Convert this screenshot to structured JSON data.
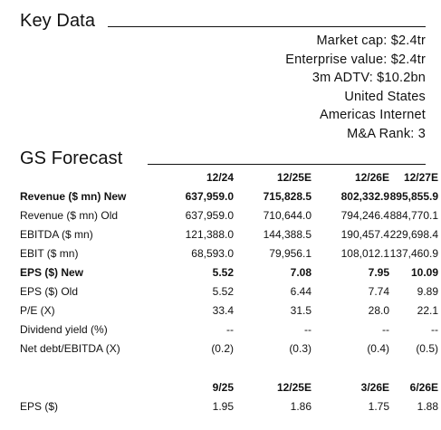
{
  "key_data": {
    "title": "Key Data",
    "lines": [
      "Market cap: $2.4tr",
      "Enterprise value: $2.4tr",
      "3m ADTV: $10.2bn",
      "United States",
      "Americas Internet",
      "M&A Rank: 3"
    ]
  },
  "forecast": {
    "title": "GS Forecast",
    "headers": [
      "12/24",
      "12/25E",
      "12/26E",
      "12/27E"
    ],
    "rows": [
      {
        "label": "Revenue ($ mn) New",
        "values": [
          "637,959.0",
          "715,828.5",
          "802,332.9",
          "895,855.9"
        ],
        "bold": true
      },
      {
        "label": "Revenue ($ mn) Old",
        "values": [
          "637,959.0",
          "710,644.0",
          "794,246.4",
          "884,770.1"
        ],
        "bold": false
      },
      {
        "label": "EBITDA ($ mn)",
        "values": [
          "121,388.0",
          "144,388.5",
          "190,457.4",
          "229,698.4"
        ],
        "bold": false
      },
      {
        "label": "EBIT ($ mn)",
        "values": [
          "68,593.0",
          "79,956.1",
          "108,012.1",
          "137,460.9"
        ],
        "bold": false
      },
      {
        "label": "EPS ($) New",
        "values": [
          "5.52",
          "7.08",
          "7.95",
          "10.09"
        ],
        "bold": true
      },
      {
        "label": "EPS ($) Old",
        "values": [
          "5.52",
          "6.44",
          "7.74",
          "9.89"
        ],
        "bold": false
      },
      {
        "label": "P/E (X)",
        "values": [
          "33.4",
          "31.5",
          "28.0",
          "22.1"
        ],
        "bold": false
      },
      {
        "label": "Dividend yield (%)",
        "values": [
          "--",
          "--",
          "--",
          "--"
        ],
        "bold": false
      },
      {
        "label": "Net debt/EBITDA (X)",
        "values": [
          "(0.2)",
          "(0.3)",
          "(0.4)",
          "(0.5)"
        ],
        "bold": false
      }
    ]
  },
  "quarterly": {
    "headers": [
      "9/25",
      "12/25E",
      "3/26E",
      "6/26E"
    ],
    "rows": [
      {
        "label": "EPS ($)",
        "values": [
          "1.95",
          "1.86",
          "1.75",
          "1.88"
        ],
        "bold": false
      }
    ]
  }
}
